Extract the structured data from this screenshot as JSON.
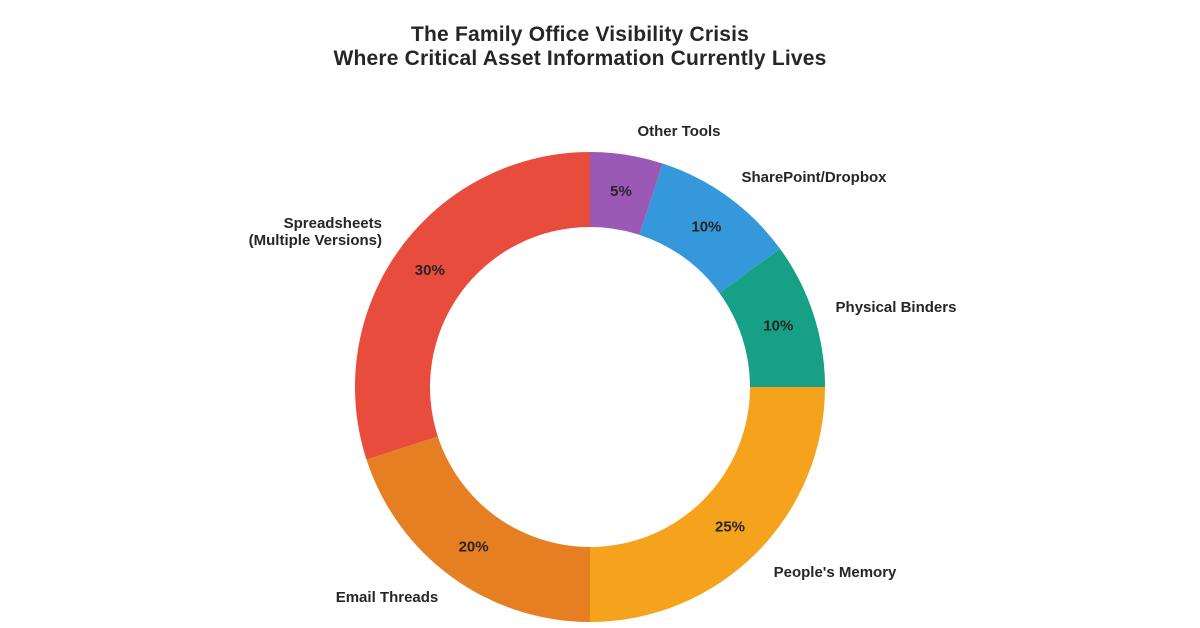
{
  "chart_data": {
    "type": "pie",
    "subtype": "donut",
    "title": "The Family Office Visibility Crisis",
    "subtitle": "Where Critical Asset Information Currently Lives",
    "direction": "clockwise",
    "start_angle": "12-oclock",
    "donut_hole_ratio": 0.68,
    "legend_position": "none",
    "label_style": "category labels outside, percent labels inside ring",
    "text_color": "#262626",
    "background_color": "#ffffff",
    "slices": [
      {
        "label": "Other Tools",
        "value": 5,
        "pct_label": "5%",
        "color": "#9b59b6"
      },
      {
        "label": "SharePoint/Dropbox",
        "value": 10,
        "pct_label": "10%",
        "color": "#3498db"
      },
      {
        "label": "Physical Binders",
        "value": 10,
        "pct_label": "10%",
        "color": "#16a085"
      },
      {
        "label": "People's Memory",
        "value": 25,
        "pct_label": "25%",
        "color": "#f5a31d"
      },
      {
        "label": "Email Threads",
        "value": 20,
        "pct_label": "20%",
        "color": "#e67e22"
      },
      {
        "label": "Spreadsheets\n(Multiple Versions)",
        "value": 30,
        "pct_label": "30%",
        "color": "#e74c3c"
      }
    ]
  }
}
